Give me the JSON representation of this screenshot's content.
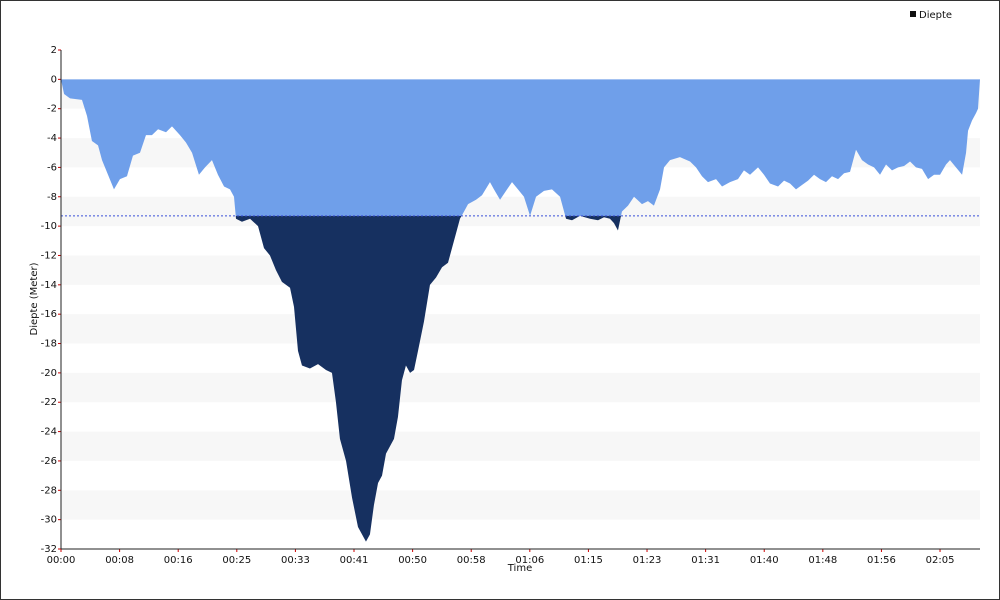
{
  "chart_data": {
    "type": "area",
    "x_label": "Time",
    "y_label": "Diepte (Meter)",
    "legend_position": "top-right",
    "grid": "bands",
    "series": [
      {
        "name": "Diepte",
        "color": "#6f9fea",
        "below_color": "#163060",
        "legend_color": "#111111",
        "x": [
          0,
          26,
          77,
          179,
          222,
          264,
          316,
          350,
          401,
          452,
          503,
          563,
          614,
          674,
          725,
          776,
          828,
          896,
          947,
          1015,
          1066,
          1118,
          1177,
          1229,
          1288,
          1339,
          1391,
          1442,
          1476,
          1493,
          1544,
          1613,
          1681,
          1732,
          1783,
          1834,
          1885,
          1954,
          1988,
          2022,
          2056,
          2124,
          2193,
          2261,
          2312,
          2346,
          2380,
          2432,
          2483,
          2534,
          2602,
          2636,
          2670,
          2705,
          2739,
          2773,
          2807,
          2841,
          2875,
          2909,
          2943,
          2978,
          3012,
          3046,
          3097,
          3148,
          3200,
          3251,
          3302,
          3336,
          3370,
          3404,
          3439,
          3473,
          3541,
          3592,
          3660,
          3694,
          3746,
          3797,
          3848,
          3899,
          3950,
          4002,
          4053,
          4121,
          4189,
          4258,
          4309,
          4360,
          4428,
          4514,
          4582,
          4633,
          4684,
          4718,
          4752,
          4786,
          4838,
          4889,
          4957,
          5008,
          5059,
          5111,
          5145,
          5196,
          5281,
          5367,
          5418,
          5469,
          5520,
          5589,
          5640,
          5708,
          5776,
          5827,
          5879,
          5947,
          5998,
          6049,
          6118,
          6169,
          6220,
          6271,
          6322,
          6374,
          6425,
          6476,
          6527,
          6578,
          6630,
          6681,
          6732,
          6783,
          6834,
          6886,
          6937,
          6988,
          7039,
          7090,
          7142,
          7193,
          7244,
          7295,
          7346,
          7398,
          7449,
          7500,
          7551,
          7585,
          7636,
          7688,
          7722,
          7739,
          7773,
          7807,
          7824,
          7841
        ],
        "values": [
          0,
          -1,
          -1.3,
          -1.4,
          -2.5,
          -4.2,
          -4.5,
          -5.5,
          -6.5,
          -7.5,
          -6.8,
          -6.6,
          -5.2,
          -5.0,
          -3.8,
          -3.8,
          -3.4,
          -3.6,
          -3.2,
          -3.8,
          -4.3,
          -5.0,
          -6.5,
          -6.0,
          -5.5,
          -6.5,
          -7.3,
          -7.5,
          -8.0,
          -9.5,
          -9.7,
          -9.5,
          -10,
          -11.5,
          -12.0,
          -13,
          -13.8,
          -14.2,
          -15.5,
          -18.5,
          -19.5,
          -19.7,
          -19.4,
          -19.8,
          -20,
          -22,
          -24.5,
          -26,
          -28.5,
          -30.5,
          -31.5,
          -31,
          -29,
          -27.5,
          -27,
          -25.5,
          -25,
          -24.5,
          -23,
          -20.5,
          -19.5,
          -20,
          -19.8,
          -18.5,
          -16.5,
          -14,
          -13.5,
          -12.8,
          -12.5,
          -11.5,
          -10.5,
          -9.5,
          -9,
          -8.5,
          -8.2,
          -7.9,
          -7.0,
          -7.5,
          -8.2,
          -7.6,
          -7.0,
          -7.5,
          -8.0,
          -9.3,
          -8.0,
          -7.6,
          -7.5,
          -8,
          -9.5,
          -9.6,
          -9.3,
          -9.5,
          -9.6,
          -9.4,
          -9.5,
          -9.8,
          -10.3,
          -9.0,
          -8.6,
          -8.0,
          -8.5,
          -8.3,
          -8.6,
          -7.5,
          -6.0,
          -5.5,
          -5.3,
          -5.6,
          -6.0,
          -6.6,
          -7.0,
          -6.8,
          -7.3,
          -7.0,
          -6.8,
          -6.2,
          -6.5,
          -6.0,
          -6.5,
          -7.1,
          -7.3,
          -6.9,
          -7.1,
          -7.5,
          -7.2,
          -6.9,
          -6.5,
          -6.8,
          -7.0,
          -6.6,
          -6.8,
          -6.4,
          -6.3,
          -4.8,
          -5.5,
          -5.8,
          -6.0,
          -6.5,
          -5.8,
          -6.2,
          -6.0,
          -5.9,
          -5.6,
          -6.0,
          -6.1,
          -6.8,
          -6.5,
          -6.5,
          -5.8,
          -5.5,
          -6.0,
          -6.5,
          -5.0,
          -3.5,
          -2.8,
          -2.3,
          -2.0,
          0
        ]
      }
    ],
    "reference_line": {
      "value": -9.3,
      "color": "#3a4fd8"
    },
    "xlim": [
      0,
      7841
    ],
    "xticks": [
      {
        "value": 0,
        "label": "00:00"
      },
      {
        "value": 500,
        "label": "00:08"
      },
      {
        "value": 1000,
        "label": "00:16"
      },
      {
        "value": 1500,
        "label": "00:25"
      },
      {
        "value": 2000,
        "label": "00:33"
      },
      {
        "value": 2500,
        "label": "00:41"
      },
      {
        "value": 3000,
        "label": "00:50"
      },
      {
        "value": 3500,
        "label": "00:58"
      },
      {
        "value": 4000,
        "label": "01:06"
      },
      {
        "value": 4500,
        "label": "01:15"
      },
      {
        "value": 5000,
        "label": "01:23"
      },
      {
        "value": 5500,
        "label": "01:31"
      },
      {
        "value": 6000,
        "label": "01:40"
      },
      {
        "value": 6500,
        "label": "01:48"
      },
      {
        "value": 7000,
        "label": "01:56"
      },
      {
        "value": 7500,
        "label": "02:05"
      }
    ],
    "ylim": [
      -32,
      2
    ],
    "yticks": [
      2,
      0,
      -2,
      -4,
      -6,
      -8,
      -10,
      -12,
      -14,
      -16,
      -18,
      -20,
      -22,
      -24,
      -26,
      -28,
      -30,
      -32
    ]
  }
}
